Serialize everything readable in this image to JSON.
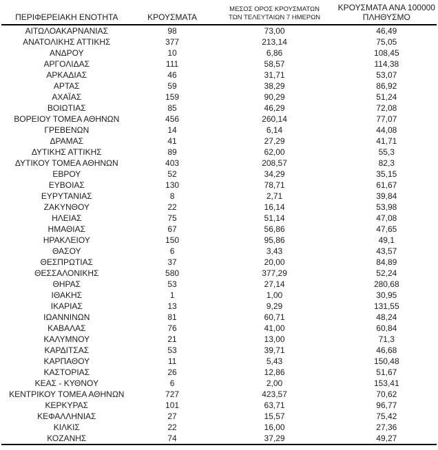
{
  "colors": {
    "text": "#1c1c1c",
    "rule": "#000000",
    "background": "#ffffff"
  },
  "table": {
    "headers": {
      "col1": "ΠΕΡΙΦΕΡΕΙΑΚΗ ΕΝΟΤΗΤΑ",
      "col2": "ΚΡΟΥΣΜΑΤΑ",
      "col3_line1": "ΜΕΣΟΣ ΟΡΟΣ ΚΡΟΥΣΜΑΤΩΝ",
      "col3_line2": "ΤΩΝ ΤΕΛΕΥΤΑΙΩΝ 7 ΗΜΕΡΩΝ",
      "col4_line1": "ΚΡΟΥΣΜΑΤΑ ΑΝΑ 100000",
      "col4_line2": "ΠΛΗΘΥΣΜΟ"
    },
    "rows": [
      {
        "region": "ΑΙΤΩΛΟΑΚΑΡΝΑΝΙΑΣ",
        "cases": "98",
        "avg7": "73,00",
        "per100k": "46,49"
      },
      {
        "region": "ΑΝΑΤΟΛΙΚΗΣ ΑΤΤΙΚΗΣ",
        "cases": "377",
        "avg7": "213,14",
        "per100k": "75,05"
      },
      {
        "region": "ΑΝΔΡΟΥ",
        "cases": "10",
        "avg7": "6,86",
        "per100k": "108,45"
      },
      {
        "region": "ΑΡΓΟΛΙΔΑΣ",
        "cases": "111",
        "avg7": "58,57",
        "per100k": "114,38"
      },
      {
        "region": "ΑΡΚΑΔΙΑΣ",
        "cases": "46",
        "avg7": "31,71",
        "per100k": "53,07"
      },
      {
        "region": "ΑΡΤΑΣ",
        "cases": "59",
        "avg7": "38,29",
        "per100k": "86,92"
      },
      {
        "region": "ΑΧΑΪΑΣ",
        "cases": "159",
        "avg7": "90,29",
        "per100k": "51,24"
      },
      {
        "region": "ΒΟΙΩΤΙΑΣ",
        "cases": "85",
        "avg7": "46,29",
        "per100k": "72,08"
      },
      {
        "region": "ΒΟΡΕΙΟΥ ΤΟΜΕΑ ΑΘΗΝΩΝ",
        "cases": "456",
        "avg7": "260,14",
        "per100k": "77,07"
      },
      {
        "region": "ΓΡΕΒΕΝΩΝ",
        "cases": "14",
        "avg7": "6,14",
        "per100k": "44,08"
      },
      {
        "region": "ΔΡΑΜΑΣ",
        "cases": "41",
        "avg7": "27,29",
        "per100k": "41,71"
      },
      {
        "region": "ΔΥΤΙΚΗΣ ΑΤΤΙΚΗΣ",
        "cases": "89",
        "avg7": "62,00",
        "per100k": "55,3"
      },
      {
        "region": "ΔΥΤΙΚΟΥ ΤΟΜΕΑ ΑΘΗΝΩΝ",
        "cases": "403",
        "avg7": "208,57",
        "per100k": "82,3"
      },
      {
        "region": "ΕΒΡΟΥ",
        "cases": "52",
        "avg7": "34,29",
        "per100k": "35,15"
      },
      {
        "region": "ΕΥΒΟΙΑΣ",
        "cases": "130",
        "avg7": "78,71",
        "per100k": "61,67"
      },
      {
        "region": "ΕΥΡΥΤΑΝΙΑΣ",
        "cases": "8",
        "avg7": "2,71",
        "per100k": "39,84"
      },
      {
        "region": "ΖΑΚΥΝΘΟΥ",
        "cases": "22",
        "avg7": "16,14",
        "per100k": "53,98"
      },
      {
        "region": "ΗΛΕΙΑΣ",
        "cases": "75",
        "avg7": "51,14",
        "per100k": "47,08"
      },
      {
        "region": "ΗΜΑΘΙΑΣ",
        "cases": "67",
        "avg7": "56,86",
        "per100k": "47,65"
      },
      {
        "region": "ΗΡΑΚΛΕΙΟΥ",
        "cases": "150",
        "avg7": "95,86",
        "per100k": "49,1"
      },
      {
        "region": "ΘΑΣΟΥ",
        "cases": "6",
        "avg7": "3,43",
        "per100k": "43,57"
      },
      {
        "region": "ΘΕΣΠΡΩΤΙΑΣ",
        "cases": "37",
        "avg7": "20,00",
        "per100k": "84,89"
      },
      {
        "region": "ΘΕΣΣΑΛΟΝΙΚΗΣ",
        "cases": "580",
        "avg7": "377,29",
        "per100k": "52,24"
      },
      {
        "region": "ΘΗΡΑΣ",
        "cases": "53",
        "avg7": "27,14",
        "per100k": "280,68"
      },
      {
        "region": "ΙΘΑΚΗΣ",
        "cases": "1",
        "avg7": "1,00",
        "per100k": "30,95"
      },
      {
        "region": "ΙΚΑΡΙΑΣ",
        "cases": "13",
        "avg7": "9,29",
        "per100k": "131,55"
      },
      {
        "region": "ΙΩΑΝΝΙΝΩΝ",
        "cases": "81",
        "avg7": "60,71",
        "per100k": "48,24"
      },
      {
        "region": "ΚΑΒΑΛΑΣ",
        "cases": "76",
        "avg7": "41,00",
        "per100k": "60,84"
      },
      {
        "region": "ΚΑΛΥΜΝΟΥ",
        "cases": "21",
        "avg7": "13,00",
        "per100k": "71,3"
      },
      {
        "region": "ΚΑΡΔΙΤΣΑΣ",
        "cases": "53",
        "avg7": "39,71",
        "per100k": "46,68"
      },
      {
        "region": "ΚΑΡΠΑΘΟΥ",
        "cases": "11",
        "avg7": "5,43",
        "per100k": "150,48"
      },
      {
        "region": "ΚΑΣΤΟΡΙΑΣ",
        "cases": "26",
        "avg7": "12,86",
        "per100k": "51,67"
      },
      {
        "region": "ΚΕΑΣ - ΚΥΘΝΟΥ",
        "cases": "6",
        "avg7": "2,00",
        "per100k": "153,41"
      },
      {
        "region": "ΚΕΝΤΡΙΚΟΥ ΤΟΜΕΑ ΑΘΗΝΩΝ",
        "cases": "727",
        "avg7": "423,57",
        "per100k": "70,62"
      },
      {
        "region": "ΚΕΡΚΥΡΑΣ",
        "cases": "101",
        "avg7": "63,71",
        "per100k": "96,77"
      },
      {
        "region": "ΚΕΦΑΛΛΗΝΙΑΣ",
        "cases": "27",
        "avg7": "15,57",
        "per100k": "75,42"
      },
      {
        "region": "ΚΙΛΚΙΣ",
        "cases": "22",
        "avg7": "16,00",
        "per100k": "27,36"
      },
      {
        "region": "ΚΟΖΑΝΗΣ",
        "cases": "74",
        "avg7": "37,29",
        "per100k": "49,27"
      }
    ]
  }
}
